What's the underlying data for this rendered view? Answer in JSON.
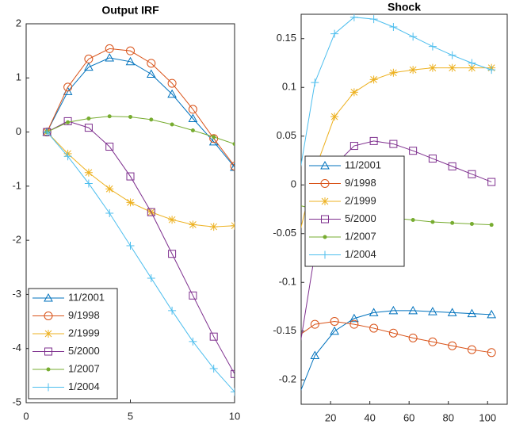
{
  "chart_data": [
    {
      "type": "line",
      "title": "Output IRF",
      "x": [
        1,
        2,
        3,
        4,
        5,
        6,
        7,
        8,
        9,
        10
      ],
      "xlim": [
        0,
        10
      ],
      "xticks": [
        0,
        5,
        10
      ],
      "ylim": [
        -5,
        2
      ],
      "yticks": [
        -5,
        -4,
        -3,
        -2,
        -1,
        0,
        1,
        2
      ],
      "legend": "lower-left",
      "series": [
        {
          "name": "11/2001",
          "color": "#0072bd",
          "marker": "triangle",
          "values": [
            0,
            0.75,
            1.2,
            1.37,
            1.3,
            1.07,
            0.7,
            0.25,
            -0.18,
            -0.65
          ]
        },
        {
          "name": "9/1998",
          "color": "#d95319",
          "marker": "circle",
          "values": [
            0,
            0.83,
            1.35,
            1.54,
            1.5,
            1.27,
            0.9,
            0.42,
            -0.12,
            -0.63
          ]
        },
        {
          "name": "2/1999",
          "color": "#edb120",
          "marker": "star",
          "values": [
            0,
            -0.4,
            -0.75,
            -1.05,
            -1.3,
            -1.48,
            -1.62,
            -1.71,
            -1.75,
            -1.73
          ]
        },
        {
          "name": "5/2000",
          "color": "#7e2f8e",
          "marker": "square",
          "values": [
            0,
            0.2,
            0.08,
            -0.27,
            -0.82,
            -1.48,
            -2.25,
            -3.02,
            -3.78,
            -4.47
          ]
        },
        {
          "name": "1/2007",
          "color": "#77ac30",
          "marker": "dot",
          "values": [
            0,
            0.18,
            0.25,
            0.29,
            0.28,
            0.23,
            0.14,
            0.03,
            -0.09,
            -0.22
          ]
        },
        {
          "name": "1/2004",
          "color": "#4dbeee",
          "marker": "plus",
          "values": [
            0,
            -0.45,
            -0.95,
            -1.5,
            -2.1,
            -2.7,
            -3.3,
            -3.87,
            -4.37,
            -4.8
          ]
        }
      ]
    },
    {
      "type": "line",
      "title": "Shock",
      "x": [
        2,
        12,
        22,
        32,
        42,
        52,
        62,
        72,
        82,
        92,
        102
      ],
      "xlim": [
        5,
        110
      ],
      "xticks": [
        20,
        40,
        60,
        80,
        100
      ],
      "ylim": [
        -0.225,
        0.175
      ],
      "yticks": [
        -0.2,
        -0.15,
        -0.1,
        -0.05,
        0,
        0.05,
        0.1,
        0.15
      ],
      "legend": "center-left",
      "series": [
        {
          "name": "11/2001",
          "color": "#0072bd",
          "marker": "triangle",
          "values": [
            -0.225,
            -0.175,
            -0.15,
            -0.137,
            -0.131,
            -0.129,
            -0.129,
            -0.13,
            -0.131,
            -0.132,
            -0.133
          ]
        },
        {
          "name": "9/1998",
          "color": "#d95319",
          "marker": "circle",
          "values": [
            -0.157,
            -0.143,
            -0.14,
            -0.143,
            -0.147,
            -0.152,
            -0.157,
            -0.161,
            -0.165,
            -0.169,
            -0.172
          ]
        },
        {
          "name": "2/1999",
          "color": "#edb120",
          "marker": "star",
          "values": [
            -0.068,
            0.015,
            0.07,
            0.095,
            0.108,
            0.115,
            0.118,
            0.12,
            0.12,
            0.12,
            0.12
          ]
        },
        {
          "name": "5/2000",
          "color": "#7e2f8e",
          "marker": "square",
          "values": [
            -0.195,
            -0.07,
            0.02,
            0.04,
            0.045,
            0.042,
            0.035,
            0.027,
            0.019,
            0.011,
            0.003
          ]
        },
        {
          "name": "1/2007",
          "color": "#77ac30",
          "marker": "dot",
          "values": [
            -0.02,
            -0.025,
            -0.028,
            -0.03,
            -0.032,
            -0.034,
            -0.036,
            -0.038,
            -0.039,
            -0.04,
            -0.041
          ]
        },
        {
          "name": "1/2004",
          "color": "#4dbeee",
          "marker": "plus",
          "values": [
            -0.015,
            0.105,
            0.155,
            0.172,
            0.17,
            0.162,
            0.152,
            0.142,
            0.133,
            0.125,
            0.118
          ]
        }
      ]
    }
  ]
}
